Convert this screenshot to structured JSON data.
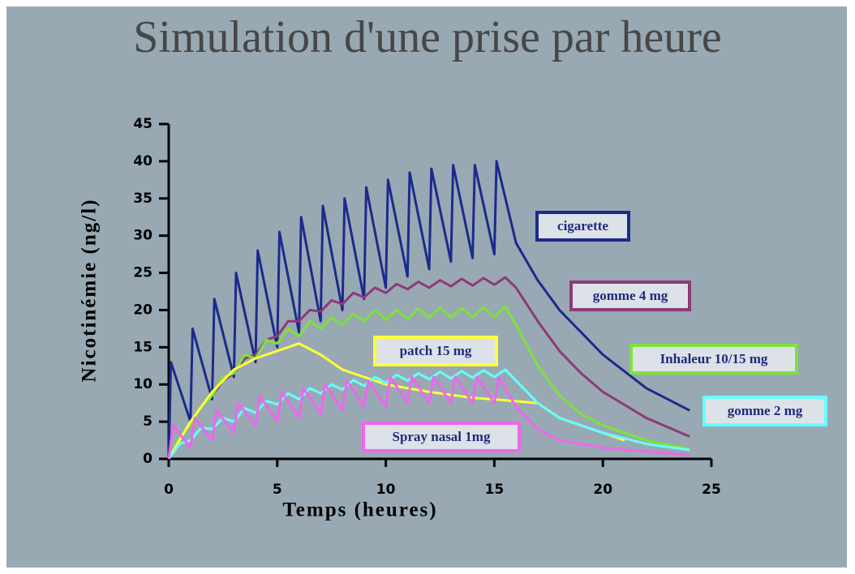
{
  "chart_data": {
    "type": "line",
    "title": "Simulation d'une prise par heure",
    "xlabel": "Temps (heures)",
    "ylabel": "Nicotinémie (ng/l)",
    "xlim": [
      0,
      25
    ],
    "xticks": [
      0,
      5,
      10,
      15,
      20,
      25
    ],
    "ylim": [
      0,
      45
    ],
    "yticks": [
      0,
      5,
      10,
      15,
      20,
      25,
      30,
      35,
      40,
      45
    ],
    "series": [
      {
        "name": "cigarette",
        "color": "#1c2a8c",
        "x": [
          0,
          0.1,
          1,
          1.1,
          2,
          2.1,
          3,
          3.1,
          4,
          4.1,
          5,
          5.1,
          6,
          6.1,
          7,
          7.1,
          8,
          8.1,
          9,
          9.1,
          10,
          10.1,
          11,
          11.1,
          12,
          12.1,
          13,
          13.1,
          14,
          14.1,
          15,
          15.1,
          16,
          17,
          18,
          20,
          22,
          24
        ],
        "values": [
          0,
          13,
          5,
          17.5,
          8,
          21.5,
          11,
          25,
          13,
          28,
          15,
          30.5,
          17,
          32.5,
          18.5,
          34,
          20,
          35,
          21.5,
          36.5,
          23,
          37.5,
          24.5,
          38.5,
          25.5,
          39,
          26.5,
          39.5,
          27,
          39.5,
          27.5,
          40,
          29,
          24,
          20,
          14,
          9.5,
          6.5
        ]
      },
      {
        "name": "gomme 4 mg",
        "color": "#8e3a78",
        "x": [
          0,
          0.5,
          1,
          1.5,
          2,
          2.5,
          3,
          3.5,
          4,
          4.5,
          5,
          5.5,
          6,
          6.5,
          7,
          7.5,
          8,
          8.5,
          9,
          9.5,
          10,
          10.5,
          11,
          11.5,
          12,
          12.5,
          13,
          13.5,
          14,
          14.5,
          15,
          15.5,
          16,
          17,
          18,
          19,
          20,
          22,
          24
        ],
        "values": [
          0,
          3,
          4.5,
          7,
          8.5,
          10.5,
          11.5,
          13.5,
          14,
          16,
          16.5,
          18.5,
          18.5,
          20,
          19.8,
          21.3,
          20.8,
          22.3,
          21.7,
          23,
          22.3,
          23.5,
          22.8,
          23.8,
          23,
          24,
          23.2,
          24.2,
          23.3,
          24.3,
          23.4,
          24.4,
          23,
          18.5,
          14.5,
          11.5,
          9,
          5.5,
          3
        ]
      },
      {
        "name": "Inhaleur 10/15 mg",
        "color": "#7ee23a",
        "x": [
          0,
          0.5,
          1,
          1.5,
          2,
          2.5,
          3,
          3.5,
          4,
          4.5,
          5,
          5.5,
          6,
          6.5,
          7,
          7.5,
          8,
          8.5,
          9,
          9.5,
          10,
          10.5,
          11,
          11.5,
          12,
          12.5,
          13,
          13.5,
          14,
          14.5,
          15,
          15.5,
          16,
          17,
          18,
          19,
          20,
          22,
          24
        ],
        "values": [
          0,
          3,
          4.5,
          7,
          8.5,
          11,
          11.5,
          14,
          13.5,
          16,
          15.5,
          17.5,
          16.5,
          18.5,
          17.5,
          19,
          18,
          19.5,
          18.5,
          20,
          18.7,
          20,
          18.8,
          20.2,
          19,
          20.3,
          19,
          20.3,
          19,
          20.4,
          19,
          20.5,
          18,
          12.5,
          8.5,
          6,
          4.5,
          2.5,
          1.3
        ]
      },
      {
        "name": "patch 15 mg",
        "color": "#ffff3c",
        "x": [
          0,
          1,
          2,
          3,
          4,
          5,
          6,
          7,
          8,
          9,
          10,
          12,
          14,
          15,
          17,
          18,
          21
        ],
        "values": [
          0,
          5,
          9,
          12,
          13.5,
          14.5,
          15.5,
          14,
          12,
          11,
          10,
          9,
          8.2,
          8,
          7.5,
          5.5,
          2.5
        ]
      },
      {
        "name": "gomme 2 mg",
        "color": "#66ffff",
        "x": [
          0,
          0.5,
          1,
          1.5,
          2,
          2.5,
          3,
          3.5,
          4,
          4.5,
          5,
          5.5,
          6,
          6.5,
          7,
          7.5,
          8,
          8.5,
          9,
          9.5,
          10,
          10.5,
          11,
          11.5,
          12,
          12.5,
          13,
          13.5,
          14,
          14.5,
          15,
          15.5,
          16,
          17,
          18,
          20,
          22,
          24
        ],
        "values": [
          0,
          2,
          2.5,
          4.2,
          4,
          5.5,
          5,
          6.8,
          6.2,
          7.8,
          7.3,
          8.8,
          8,
          9.5,
          8.8,
          10,
          9.3,
          10.6,
          9.8,
          11,
          10.2,
          11.3,
          10.5,
          11.5,
          10.7,
          11.7,
          10.8,
          11.8,
          10.9,
          11.9,
          11,
          12,
          10.5,
          7.5,
          5.5,
          3.5,
          2,
          1.2
        ]
      },
      {
        "name": "Spray nasal 1mg",
        "color": "#ee66ee",
        "x": [
          0,
          0.2,
          1,
          1.2,
          2,
          2.2,
          3,
          3.2,
          4,
          4.2,
          5,
          5.2,
          6,
          6.2,
          7,
          7.2,
          8,
          8.2,
          9,
          9.2,
          10,
          10.2,
          11,
          11.2,
          12,
          12.2,
          13,
          13.2,
          14,
          14.2,
          15,
          15.2,
          16,
          17,
          18,
          20,
          24
        ],
        "values": [
          0,
          4.5,
          1.5,
          5.5,
          2.5,
          6.5,
          3.5,
          7.5,
          4.5,
          8.5,
          5,
          9,
          5.5,
          9.5,
          6,
          10,
          6.5,
          10.5,
          7,
          10.5,
          7,
          11,
          7.5,
          11,
          7.5,
          11,
          7.5,
          11,
          7.5,
          11,
          7.5,
          11,
          7,
          4,
          2.5,
          1.5,
          0.5
        ]
      }
    ]
  }
}
